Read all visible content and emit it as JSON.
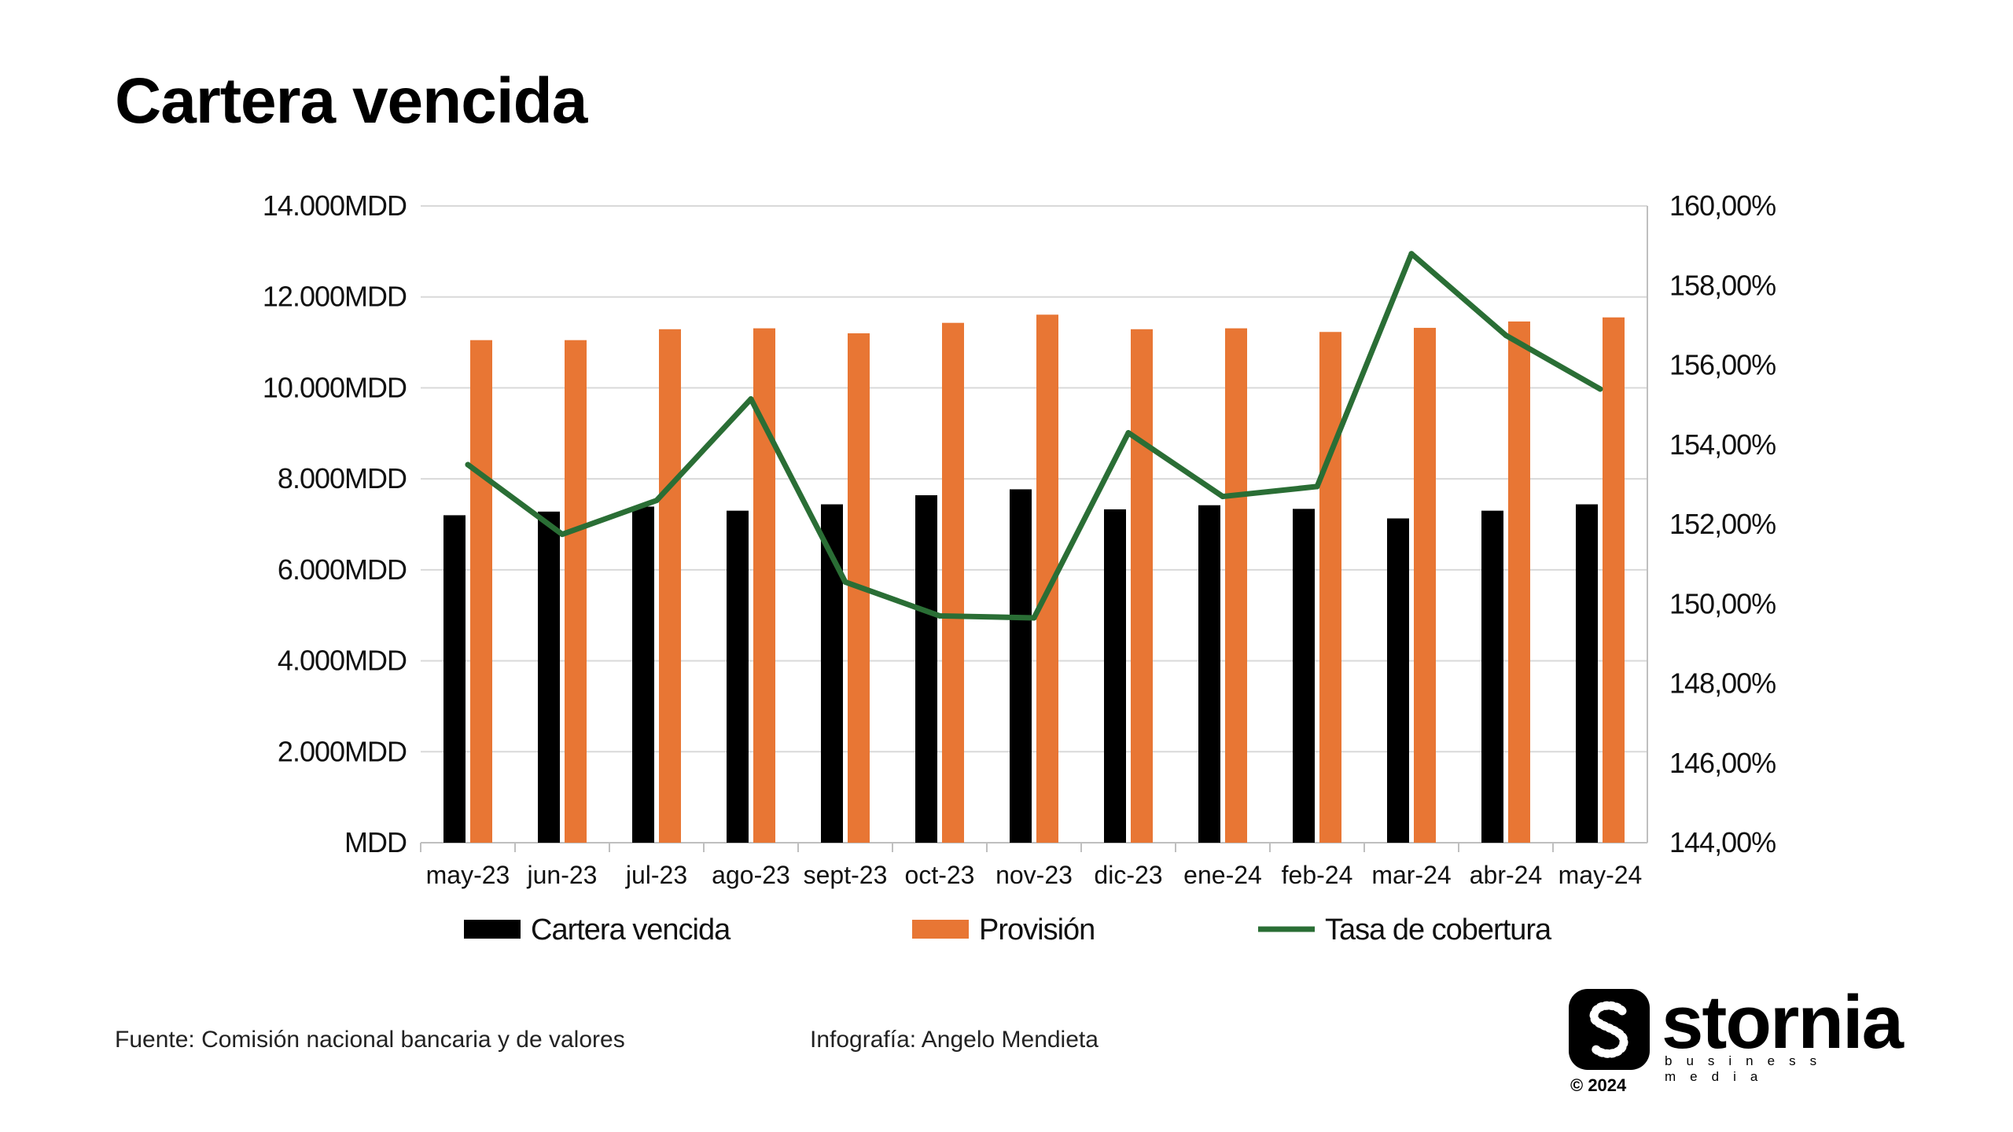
{
  "title": "Cartera vencida",
  "chart_data": {
    "type": "bar",
    "categories": [
      "may-23",
      "jun-23",
      "jul-23",
      "ago-23",
      "sept-23",
      "oct-23",
      "nov-23",
      "dic-23",
      "ene-24",
      "feb-24",
      "mar-24",
      "abr-24",
      "may-24"
    ],
    "series": [
      {
        "name": "Cartera vencida",
        "type": "bar",
        "axis": "left",
        "color": "#000000",
        "values": [
          7200,
          7280,
          7390,
          7300,
          7440,
          7640,
          7770,
          7330,
          7420,
          7340,
          7130,
          7300,
          7440
        ]
      },
      {
        "name": "Provisión",
        "type": "bar",
        "axis": "left",
        "color": "#E87634",
        "values": [
          11050,
          11050,
          11290,
          11310,
          11200,
          11430,
          11610,
          11290,
          11310,
          11230,
          11320,
          11460,
          11550
        ]
      },
      {
        "name": "Tasa de cobertura",
        "type": "line",
        "axis": "right",
        "color": "#2A6E35",
        "values": [
          153.5,
          151.75,
          152.6,
          155.15,
          150.55,
          149.7,
          149.65,
          154.3,
          152.7,
          152.95,
          158.8,
          156.75,
          155.4
        ]
      }
    ],
    "y_left": {
      "min": 0,
      "max": 14000,
      "ticks": [
        "MDD",
        "2.000MDD",
        "4.000MDD",
        "6.000MDD",
        "8.000MDD",
        "10.000MDD",
        "12.000MDD",
        "14.000MDD"
      ]
    },
    "y_right": {
      "min": 144,
      "max": 160,
      "ticks": [
        "144,00%",
        "146,00%",
        "148,00%",
        "150,00%",
        "152,00%",
        "154,00%",
        "156,00%",
        "158,00%",
        "160,00%"
      ]
    },
    "grid": true,
    "legend": "bottom"
  },
  "footer": {
    "source": "Fuente: Comisión nacional bancaria y de valores",
    "credit": "Infografía: Angelo Mendieta"
  },
  "logo": {
    "name": "stornia",
    "tagline": "business media",
    "copyright": "© 2024"
  }
}
